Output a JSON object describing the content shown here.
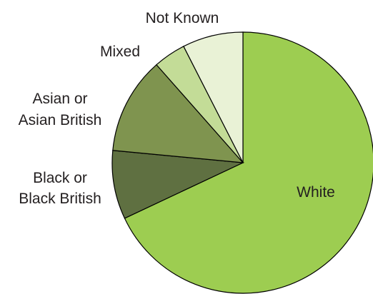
{
  "chart_data": {
    "type": "pie",
    "title": "",
    "slices": [
      {
        "label": "White",
        "value": 68.0,
        "color": "#9dcd51"
      },
      {
        "label": "Black or Black British",
        "value": 8.5,
        "color": "#5f7041"
      },
      {
        "label": "Asian or Asian British",
        "value": 12.0,
        "color": "#7f944f"
      },
      {
        "label": "Mixed",
        "value": 4.0,
        "color": "#c3dc97"
      },
      {
        "label": "Not Known",
        "value": 7.5,
        "color": "#e9f2d6"
      }
    ],
    "labels": {
      "white": [
        "White"
      ],
      "black": [
        "Black or",
        "Black British"
      ],
      "asian": [
        "Asian or",
        "Asian British"
      ],
      "mixed": [
        "Mixed"
      ],
      "not_known": [
        "Not Known"
      ]
    },
    "legend": "none"
  }
}
